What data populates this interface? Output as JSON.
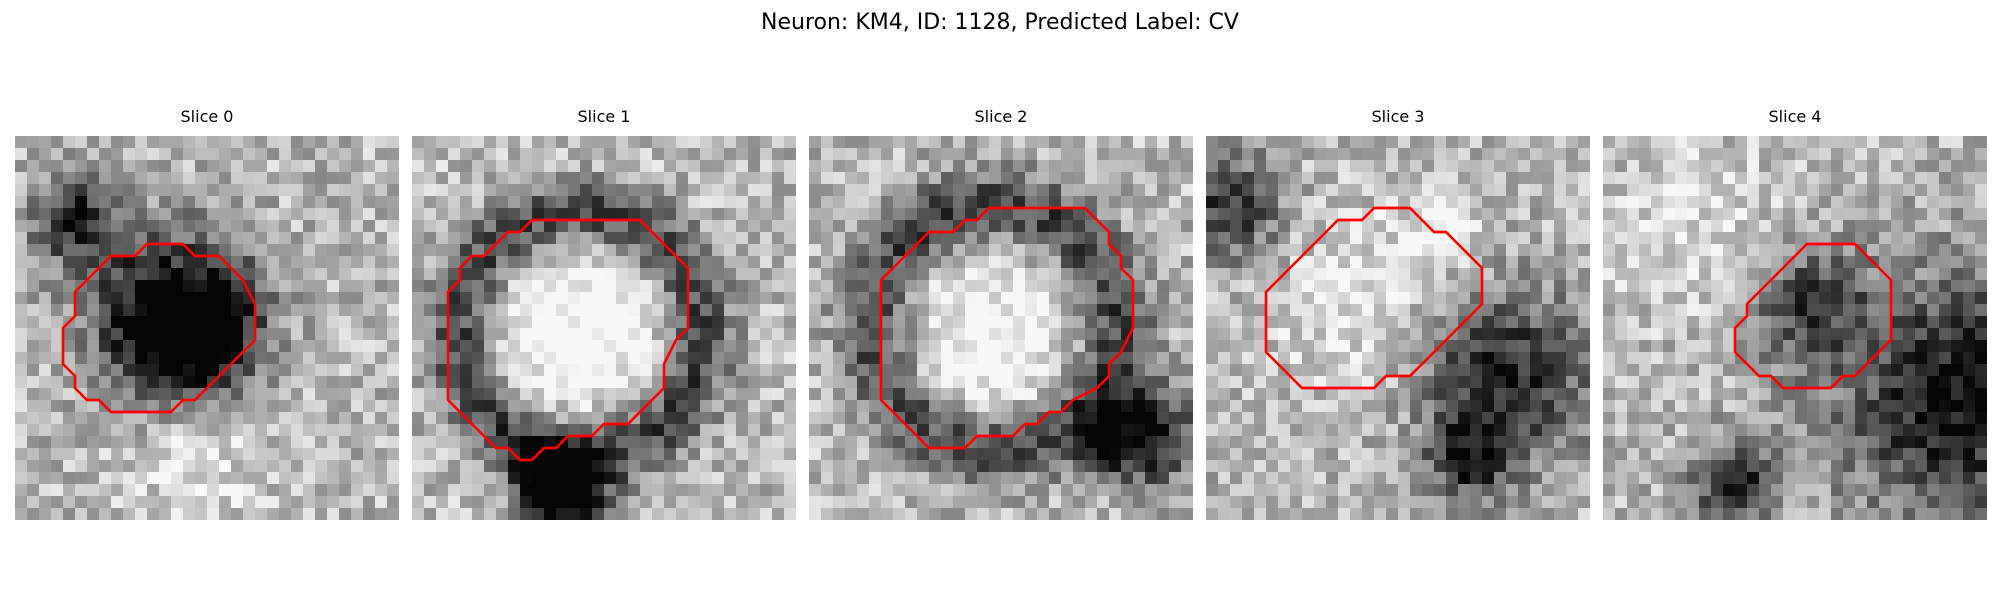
{
  "figure": {
    "title": "Neuron: KM4, ID: 1128, Predicted Label: CV"
  },
  "overlay": {
    "contour_color": "#ff0000"
  },
  "panels": [
    {
      "title": "Slice 0",
      "seed": 11,
      "contour": [
        [
          12,
          9
        ],
        [
          14,
          9
        ],
        [
          15,
          10
        ],
        [
          17,
          10
        ],
        [
          18,
          11
        ],
        [
          19,
          12
        ],
        [
          20,
          14
        ],
        [
          20,
          17
        ],
        [
          19,
          18
        ],
        [
          18,
          19
        ],
        [
          17,
          20
        ],
        [
          16,
          21
        ],
        [
          15,
          22
        ],
        [
          14,
          22
        ],
        [
          13,
          23
        ],
        [
          8,
          23
        ],
        [
          7,
          22
        ],
        [
          6,
          22
        ],
        [
          5,
          21
        ],
        [
          5,
          20
        ],
        [
          4,
          19
        ],
        [
          4,
          18
        ],
        [
          4,
          16
        ],
        [
          5,
          15
        ],
        [
          5,
          13
        ],
        [
          6,
          12
        ],
        [
          7,
          11
        ],
        [
          8,
          10
        ],
        [
          10,
          10
        ],
        [
          11,
          9
        ]
      ],
      "dark_spots": [
        [
          12.5,
          13.5,
          4.5,
          0.55
        ],
        [
          14,
          17.5,
          4,
          0.7
        ],
        [
          17,
          14,
          3,
          0.4
        ],
        [
          5,
          7,
          2.5,
          0.6
        ]
      ],
      "bright_spots": [
        [
          15,
          14,
          3,
          0.3
        ],
        [
          15,
          26,
          4,
          0.2
        ]
      ]
    },
    {
      "title": "Slice 1",
      "seed": 23,
      "contour": [
        [
          12,
          7
        ],
        [
          19,
          7
        ],
        [
          20,
          8
        ],
        [
          21,
          9
        ],
        [
          22,
          10
        ],
        [
          23,
          11
        ],
        [
          23,
          14
        ],
        [
          23,
          16
        ],
        [
          22,
          17
        ],
        [
          21,
          19
        ],
        [
          21,
          21
        ],
        [
          20,
          22
        ],
        [
          19,
          23
        ],
        [
          18,
          24
        ],
        [
          16,
          24
        ],
        [
          15,
          25
        ],
        [
          13,
          25
        ],
        [
          12,
          26
        ],
        [
          11,
          26
        ],
        [
          10,
          27
        ],
        [
          9,
          27
        ],
        [
          8,
          26
        ],
        [
          7,
          26
        ],
        [
          6,
          25
        ],
        [
          5,
          24
        ],
        [
          4,
          23
        ],
        [
          3,
          22
        ],
        [
          3,
          16
        ],
        [
          3,
          13
        ],
        [
          4,
          12
        ],
        [
          4,
          11
        ],
        [
          5,
          10
        ],
        [
          6,
          10
        ],
        [
          7,
          9
        ],
        [
          8,
          8
        ],
        [
          9,
          8
        ],
        [
          10,
          7
        ]
      ],
      "ring": [
        14,
        16.5,
        10,
        2.2,
        0.55
      ],
      "dark_spots": [
        [
          13,
          30,
          2.5,
          0.7
        ],
        [
          11,
          28,
          2,
          0.45
        ]
      ],
      "bright_spots": [
        [
          14,
          16,
          7,
          0.35
        ]
      ]
    },
    {
      "title": "Slice 2",
      "seed": 37,
      "contour": [
        [
          15,
          6
        ],
        [
          23,
          6
        ],
        [
          24,
          7
        ],
        [
          25,
          8
        ],
        [
          25,
          9
        ],
        [
          26,
          10
        ],
        [
          26,
          11
        ],
        [
          27,
          12
        ],
        [
          27,
          14
        ],
        [
          27,
          16
        ],
        [
          26,
          18
        ],
        [
          25,
          19
        ],
        [
          25,
          20
        ],
        [
          24,
          21
        ],
        [
          22,
          22
        ],
        [
          21,
          23
        ],
        [
          20,
          23
        ],
        [
          19,
          24
        ],
        [
          18,
          24
        ],
        [
          17,
          25
        ],
        [
          14,
          25
        ],
        [
          13,
          26
        ],
        [
          10,
          26
        ],
        [
          9,
          25
        ],
        [
          8,
          24
        ],
        [
          7,
          23
        ],
        [
          6,
          22
        ],
        [
          6,
          16
        ],
        [
          6,
          12
        ],
        [
          7,
          11
        ],
        [
          8,
          10
        ],
        [
          9,
          9
        ],
        [
          10,
          8
        ],
        [
          12,
          8
        ],
        [
          13,
          7
        ],
        [
          14,
          7
        ]
      ],
      "ring": [
        15.5,
        16,
        10,
        2.3,
        0.5
      ],
      "dark_spots": [
        [
          28,
          25,
          2.8,
          0.75
        ],
        [
          24,
          26,
          1.5,
          0.4
        ]
      ],
      "bright_spots": [
        [
          15,
          17,
          6,
          0.3
        ]
      ]
    },
    {
      "title": "Slice 3",
      "seed": 53,
      "contour": [
        [
          14,
          6
        ],
        [
          17,
          6
        ],
        [
          18,
          7
        ],
        [
          19,
          8
        ],
        [
          20,
          8
        ],
        [
          21,
          9
        ],
        [
          22,
          10
        ],
        [
          23,
          11
        ],
        [
          23,
          14
        ],
        [
          22,
          15
        ],
        [
          21,
          16
        ],
        [
          20,
          17
        ],
        [
          19,
          18
        ],
        [
          18,
          19
        ],
        [
          17,
          20
        ],
        [
          15,
          20
        ],
        [
          14,
          21
        ],
        [
          11,
          21
        ],
        [
          8,
          21
        ],
        [
          7,
          20
        ],
        [
          6,
          19
        ],
        [
          5,
          18
        ],
        [
          5,
          13
        ],
        [
          6,
          12
        ],
        [
          7,
          11
        ],
        [
          8,
          10
        ],
        [
          9,
          9
        ],
        [
          10,
          8
        ],
        [
          11,
          7
        ],
        [
          13,
          7
        ]
      ],
      "dark_spots": [
        [
          25,
          20,
          5,
          0.6
        ],
        [
          2,
          6,
          3,
          0.55
        ],
        [
          22,
          27,
          2.5,
          0.5
        ]
      ],
      "bright_spots": [
        [
          13,
          14,
          5,
          0.2
        ],
        [
          20,
          8,
          2,
          0.3
        ]
      ]
    },
    {
      "title": "Slice 4",
      "seed": 71,
      "contour": [
        [
          17,
          9
        ],
        [
          21,
          9
        ],
        [
          22,
          10
        ],
        [
          23,
          11
        ],
        [
          24,
          12
        ],
        [
          24,
          17
        ],
        [
          23,
          18
        ],
        [
          22,
          19
        ],
        [
          21,
          20
        ],
        [
          20,
          20
        ],
        [
          19,
          21
        ],
        [
          15,
          21
        ],
        [
          14,
          20
        ],
        [
          13,
          20
        ],
        [
          12,
          19
        ],
        [
          11,
          18
        ],
        [
          11,
          17
        ],
        [
          11,
          16
        ],
        [
          12,
          15
        ],
        [
          12,
          14
        ],
        [
          13,
          13
        ],
        [
          14,
          12
        ],
        [
          15,
          11
        ],
        [
          16,
          10
        ]
      ],
      "dark_spots": [
        [
          17,
          14,
          3.5,
          0.45
        ],
        [
          30,
          22,
          7,
          0.7
        ],
        [
          11,
          29,
          2.5,
          0.6
        ]
      ],
      "bright_spots": [
        [
          8,
          8,
          5,
          0.15
        ]
      ]
    }
  ]
}
